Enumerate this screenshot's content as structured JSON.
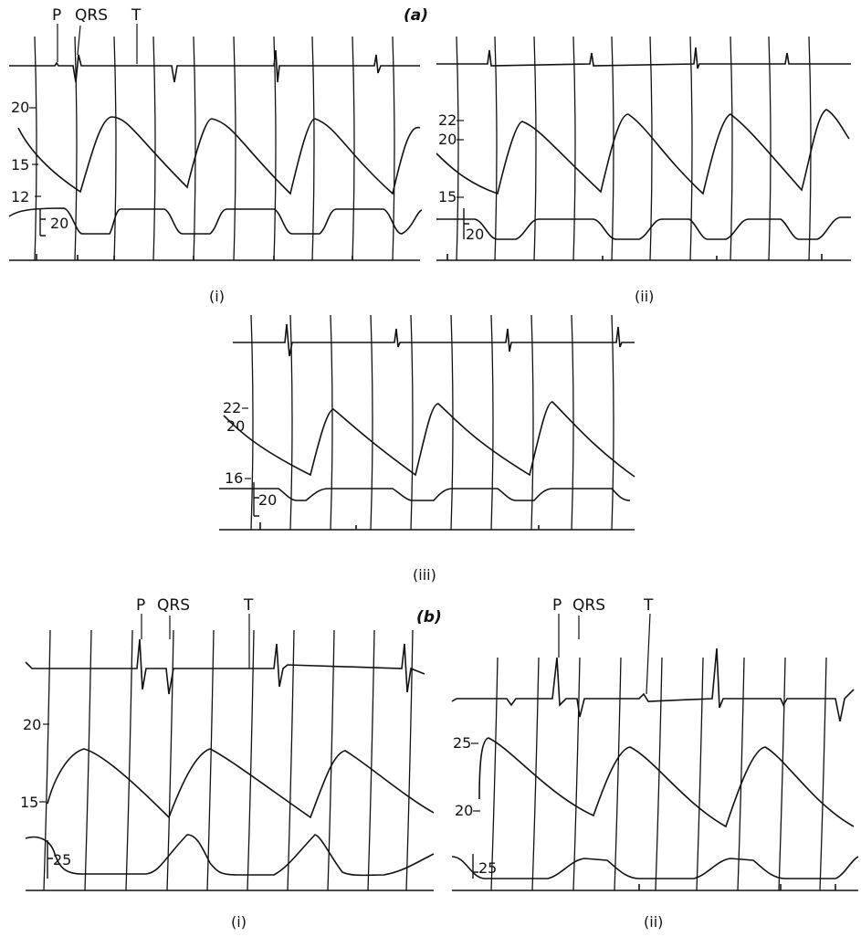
{
  "figure": {
    "part_a": {
      "label": "(a)",
      "ecg_labels": [
        "P",
        "QRS",
        "T"
      ],
      "panels": [
        {
          "id": "a-i",
          "caption": "(i)",
          "pressure_ticks": [
            "20",
            "15",
            "12"
          ],
          "volume_label": "20"
        },
        {
          "id": "a-ii",
          "caption": "(ii)",
          "pressure_ticks": [
            "22",
            "20",
            "15"
          ],
          "volume_label": "20"
        },
        {
          "id": "a-iii",
          "caption": "(iii)",
          "pressure_ticks": [
            "22",
            "20",
            "16"
          ],
          "volume_label": "20"
        }
      ]
    },
    "part_b": {
      "label": "(b)",
      "ecg_labels": [
        "P",
        "QRS",
        "T"
      ],
      "panels": [
        {
          "id": "b-i",
          "caption": "(i)",
          "pressure_ticks": [
            "20",
            "15"
          ],
          "volume_label": "25"
        },
        {
          "id": "b-ii",
          "caption": "(ii)",
          "pressure_ticks": [
            "25",
            "20"
          ],
          "volume_label": "25"
        }
      ]
    }
  },
  "colors": {
    "ink": "#111111",
    "background": "#ffffff"
  }
}
